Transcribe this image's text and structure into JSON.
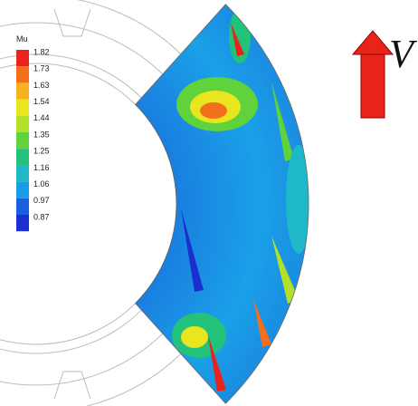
{
  "legend": {
    "title": "Mu",
    "levels": [
      1.82,
      1.73,
      1.63,
      1.54,
      1.44,
      1.35,
      1.25,
      1.16,
      1.06,
      0.97,
      0.87
    ],
    "colors": [
      "#e8231a",
      "#f2701c",
      "#f7b21f",
      "#e9e61f",
      "#b4e02a",
      "#5fd23c",
      "#22c27a",
      "#1fb8c9",
      "#1a9de8",
      "#1a5fe0",
      "#1a2fd0"
    ]
  },
  "annotation": {
    "label": "V"
  }
}
